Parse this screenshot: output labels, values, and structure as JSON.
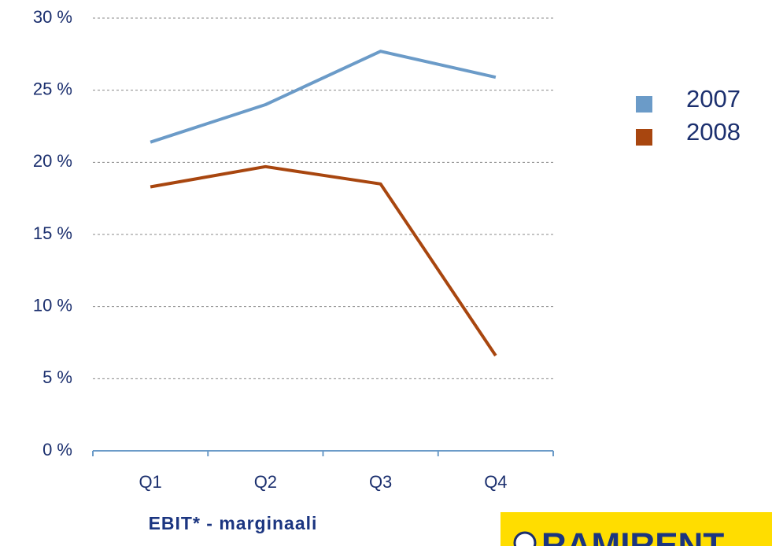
{
  "chart_data": {
    "type": "line",
    "categories": [
      "Q1",
      "Q2",
      "Q3",
      "Q4"
    ],
    "series": [
      {
        "name": "2007",
        "color": "#6b9bc8",
        "values": [
          21.4,
          24.0,
          27.7,
          25.9
        ]
      },
      {
        "name": "2008",
        "color": "#a8460f",
        "values": [
          18.3,
          19.7,
          18.5,
          6.6
        ]
      }
    ],
    "ylim": [
      0,
      30
    ],
    "yticks": [
      {
        "value": 0,
        "label": "0 %"
      },
      {
        "value": 5,
        "label": "5 %"
      },
      {
        "value": 10,
        "label": "10 %"
      },
      {
        "value": 15,
        "label": "15 %"
      },
      {
        "value": 20,
        "label": "20 %"
      },
      {
        "value": 25,
        "label": "25 %"
      },
      {
        "value": 30,
        "label": "30 %"
      }
    ],
    "grid": true,
    "caption": "EBIT* - marginaali",
    "logo": "RAMIRENT"
  }
}
